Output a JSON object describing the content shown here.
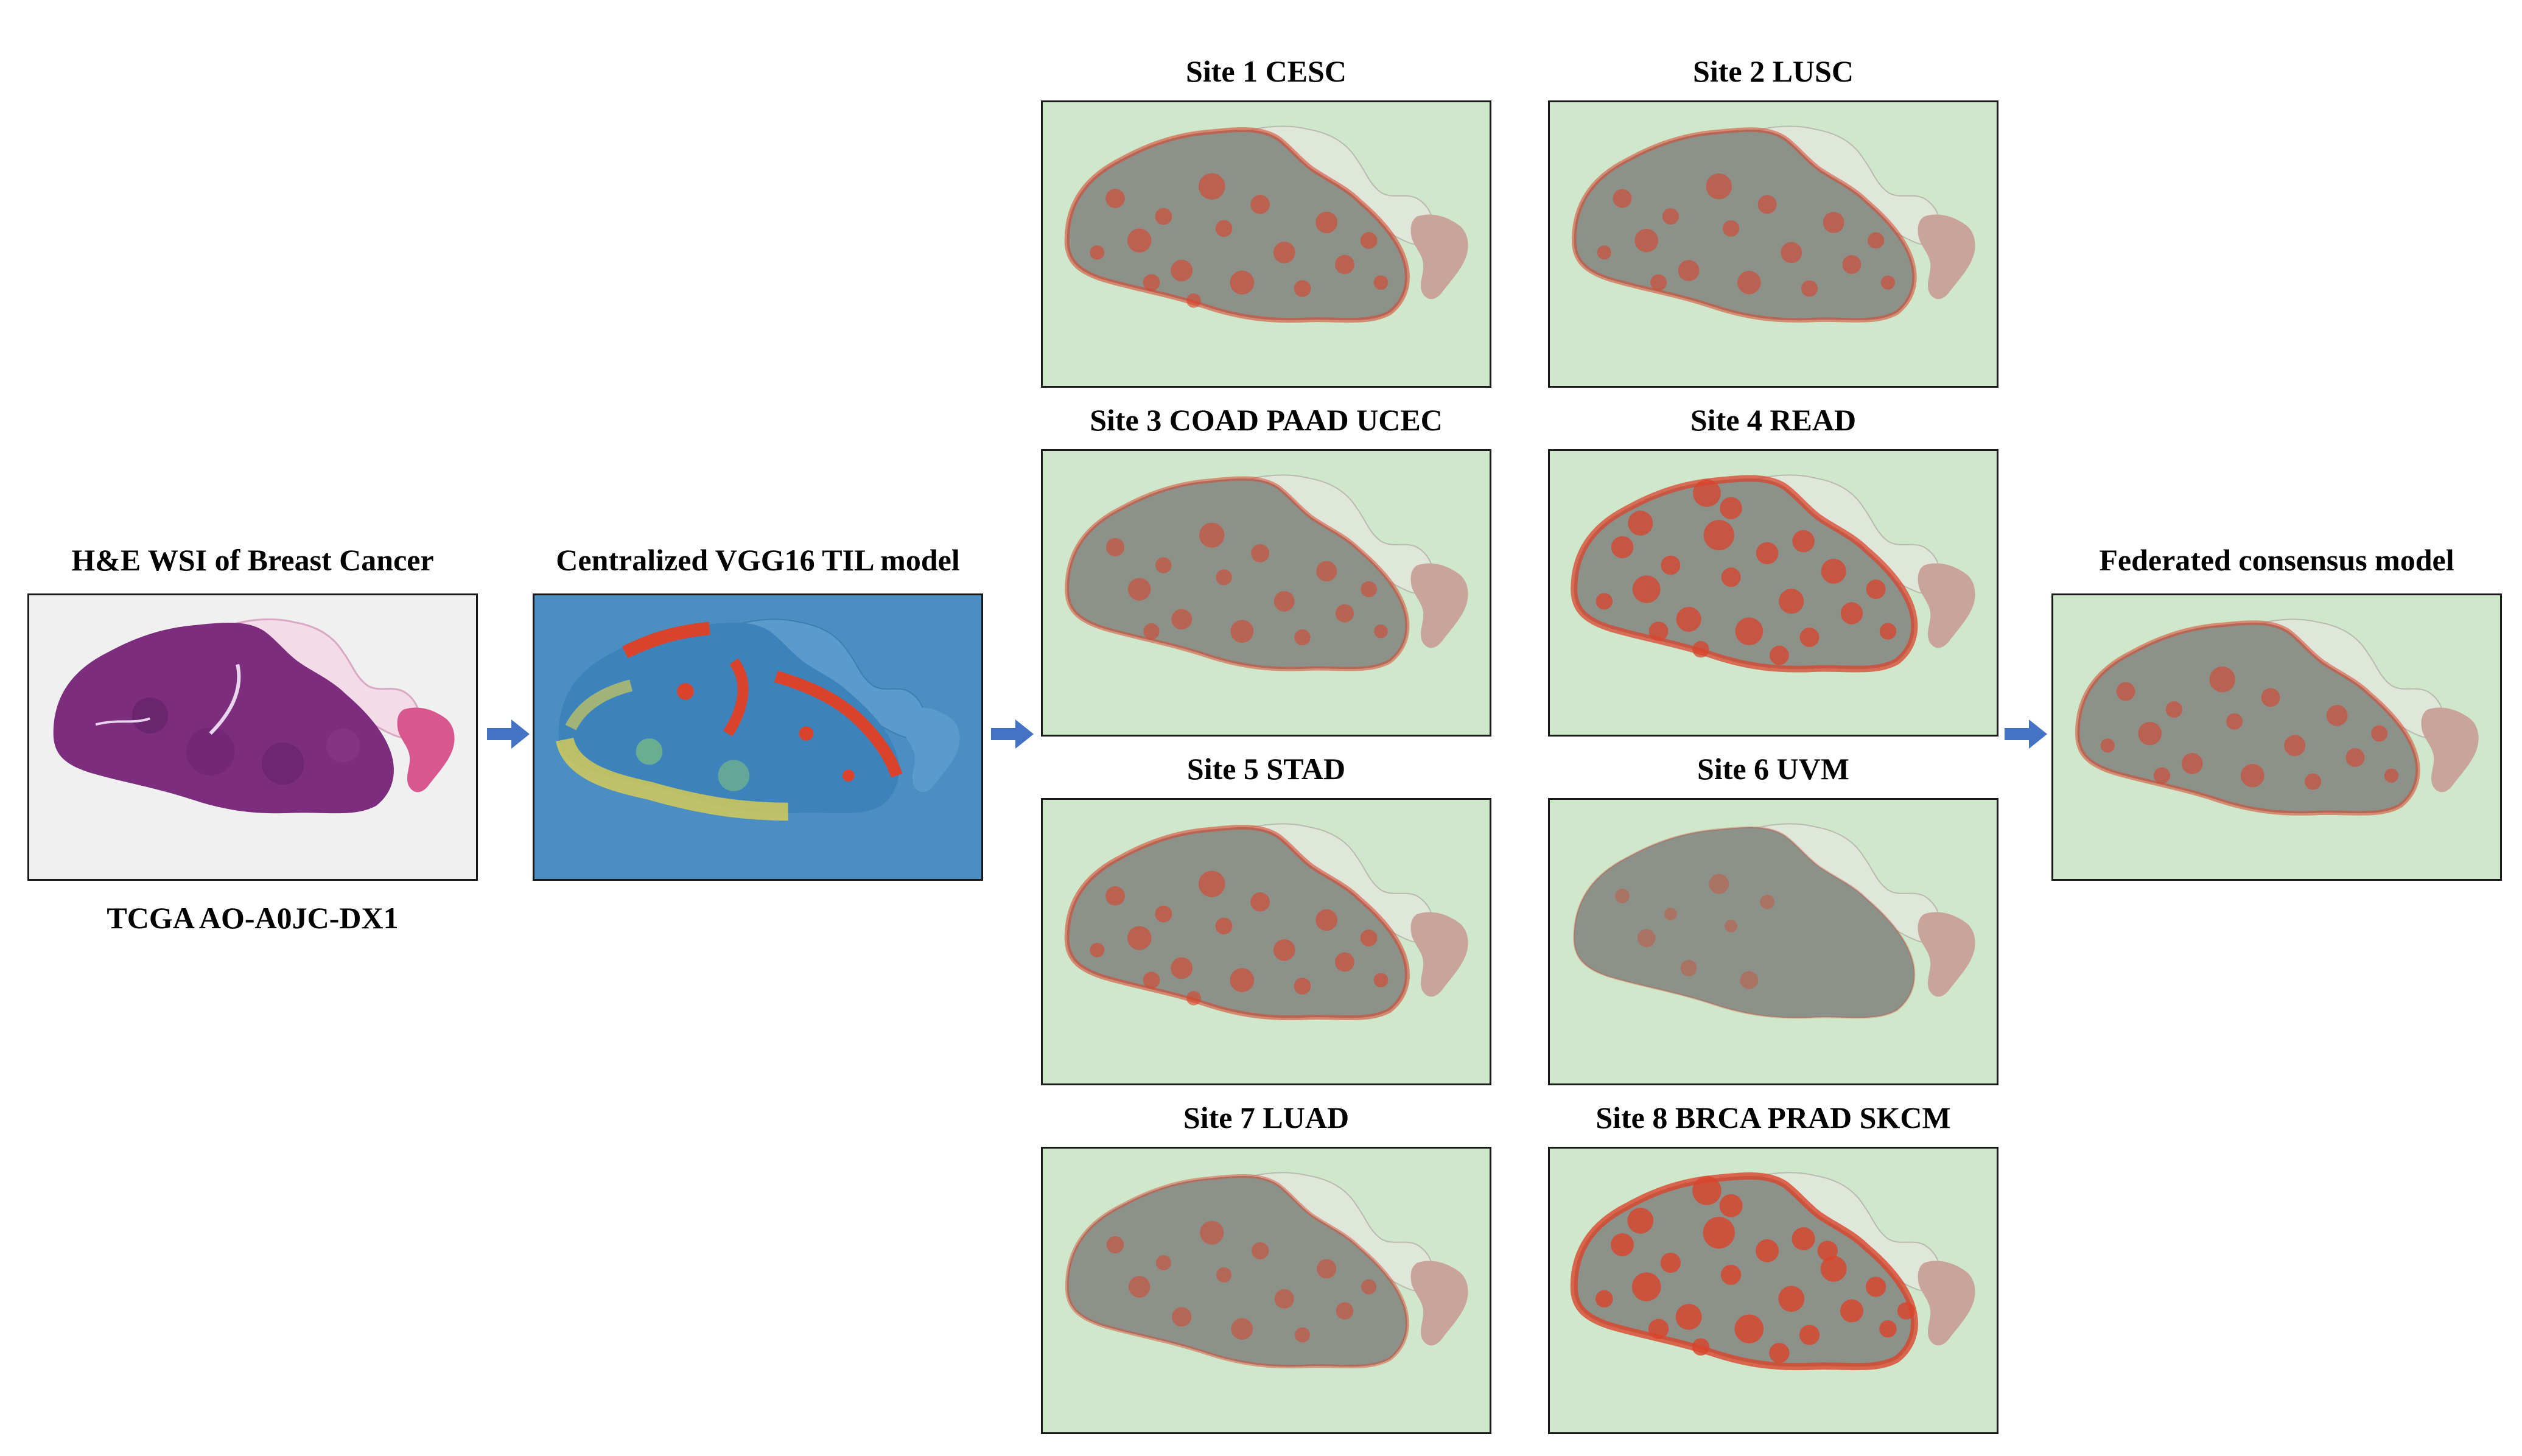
{
  "source": {
    "title": "H&E WSI of Breast Cancer",
    "caption": "TCGA AO-A0JC-DX1"
  },
  "centralized": {
    "title": "Centralized VGG16 TIL model"
  },
  "sites": [
    {
      "label": "Site 1 CESC",
      "til_level": 0.6
    },
    {
      "label": "Site 2 LUSC",
      "til_level": 0.55
    },
    {
      "label": "Site 3 COAD PAAD UCEC",
      "til_level": 0.5
    },
    {
      "label": "Site 4 READ",
      "til_level": 0.9
    },
    {
      "label": "Site 5 STAD",
      "til_level": 0.6
    },
    {
      "label": "Site 6 UVM",
      "til_level": 0.1
    },
    {
      "label": "Site 7 LUAD",
      "til_level": 0.4
    },
    {
      "label": "Site 8 BRCA PRAD SKCM",
      "til_level": 1.0
    }
  ],
  "federated": {
    "title": "Federated consensus model",
    "til_level": 0.55
  },
  "colors": {
    "arrow": "#4472c4",
    "heatmap_background": "#cfe8cc",
    "tissue_gray": "#8c9189",
    "til_red": "#d9432c",
    "he_purple": "#7d2d7e",
    "he_pink": "#e8a0c8",
    "centralized_background": "#4b8fc2"
  }
}
